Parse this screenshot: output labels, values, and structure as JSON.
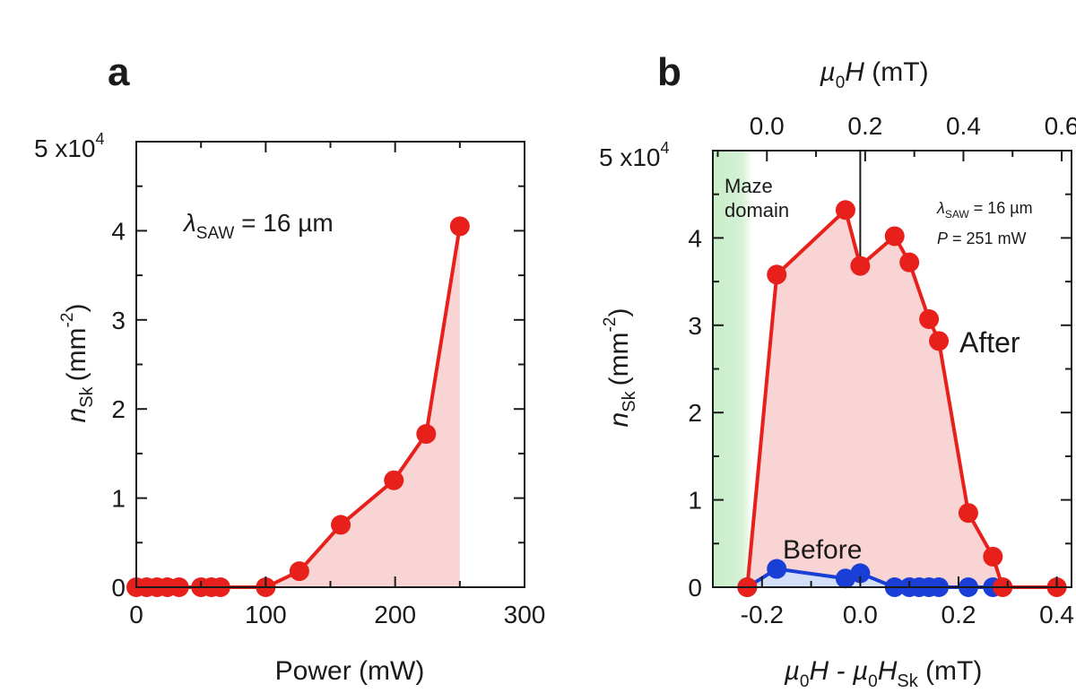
{
  "figure": {
    "panels": [
      "a",
      "b"
    ]
  },
  "chart_data": [
    {
      "panel": "a",
      "type": "line",
      "xlabel": "Power (mW)",
      "ylabel_main": "n",
      "ylabel_sub": "Sk",
      "ylabel_unit": "(mm",
      "ylabel_exp": "-2",
      "ylabel_close": ")",
      "xlim": [
        0,
        300
      ],
      "ylim": [
        0,
        5
      ],
      "xticks": [
        0,
        100,
        200,
        300
      ],
      "yticks": [
        0,
        1,
        2,
        3,
        4
      ],
      "ytick_top_label": "5 x10",
      "ytick_top_exp": "4",
      "annotation_main": "λ",
      "annotation_sub": "SAW",
      "annotation_rest": " = 16 µm",
      "series": [
        {
          "color": "#e8201c",
          "fill": "#f9d4d4",
          "x": [
            0,
            8,
            16,
            24,
            33,
            50,
            58,
            65,
            100,
            126,
            158,
            199,
            224,
            250
          ],
          "y": [
            0,
            0,
            0,
            0,
            0,
            0,
            0,
            0,
            0,
            0.18,
            0.7,
            1.2,
            1.72,
            4.05
          ]
        }
      ]
    },
    {
      "panel": "b",
      "type": "line",
      "xlabel_parts": [
        "µ",
        "0",
        "H - µ",
        "0",
        "H",
        "Sk",
        " (mT)"
      ],
      "top_xlabel_parts": [
        "µ",
        "0",
        "H",
        "  (mT)"
      ],
      "ylabel_main": "n",
      "ylabel_sub": "Sk",
      "ylabel_unit": "(mm",
      "ylabel_exp": "-2",
      "ylabel_close": ")",
      "xlim": [
        -0.3,
        0.43
      ],
      "ylim": [
        0,
        5
      ],
      "xticks": [
        -0.2,
        0.0,
        0.2,
        0.4
      ],
      "xtick_labels": [
        "-0.2",
        "0.0",
        "0.2",
        "0.4"
      ],
      "top_xlim": [
        -0.11,
        0.62
      ],
      "top_xticks": [
        0.0,
        0.2,
        0.4,
        0.6
      ],
      "top_xtick_labels": [
        "0.0",
        "0.2",
        "0.4",
        "0.6"
      ],
      "yticks": [
        0,
        1,
        2,
        3,
        4
      ],
      "ytick_top_label": "5 x10",
      "ytick_top_exp": "4",
      "maze_region": {
        "x_from": -0.3,
        "x_to": -0.22,
        "label_line1": "Maze",
        "label_line2": "domain",
        "color": "#3ec23e"
      },
      "vertical_marker_x": 0.0,
      "legend_line1_main": "λ",
      "legend_line1_sub": "SAW",
      "legend_line1_rest": " = 16 µm",
      "legend_line2_main": "P",
      "legend_line2_rest": "  = 251 mW",
      "series": [
        {
          "name": "After",
          "color": "#e8201c",
          "fill": "#f9d4d4",
          "x": [
            -0.23,
            -0.17,
            -0.03,
            0.0,
            0.07,
            0.1,
            0.14,
            0.16,
            0.22,
            0.27,
            0.29,
            0.4
          ],
          "y": [
            0,
            3.58,
            4.32,
            3.68,
            4.02,
            3.72,
            3.07,
            2.82,
            0.85,
            0.35,
            0,
            0
          ]
        },
        {
          "name": "Before",
          "color": "#1a3fd6",
          "fill": "#d3def7",
          "x": [
            -0.23,
            -0.17,
            -0.03,
            0.0,
            0.07,
            0.1,
            0.12,
            0.14,
            0.16,
            0.22,
            0.27
          ],
          "y": [
            0,
            0.21,
            0.1,
            0.16,
            0,
            0,
            0,
            0,
            0,
            0,
            0
          ]
        }
      ]
    }
  ]
}
